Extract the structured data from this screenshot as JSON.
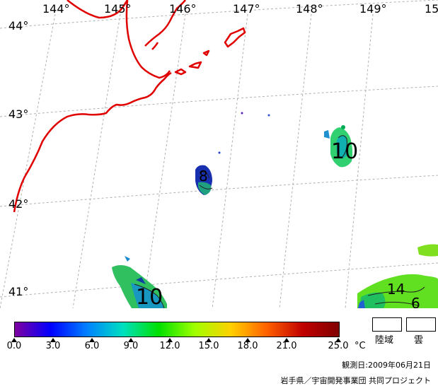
{
  "map": {
    "lon_labels": [
      "144°",
      "145°",
      "146°",
      "147°",
      "148°",
      "149°",
      "15"
    ],
    "lat_labels": [
      "44°",
      "43°",
      "42°",
      "41°"
    ],
    "contour_labels": [
      "10",
      "10",
      "14",
      "6",
      "8"
    ]
  },
  "colorbar": {
    "tick_labels": [
      "0.0",
      "3.0",
      "6.0",
      "9.0",
      "12.0",
      "15.0",
      "18.0",
      "21.0",
      "25.0"
    ],
    "unit": "°C",
    "colors": [
      "#7f00a0",
      "#0000ff",
      "#0080ff",
      "#00e0c0",
      "#00e000",
      "#a0ff00",
      "#ffd000",
      "#ff6000",
      "#c00000",
      "#800000"
    ]
  },
  "legend": {
    "land": "陸域",
    "cloud": "雲"
  },
  "footer": {
    "observation_date": "観測日:2009年06月21日",
    "credit": "岩手県／宇宙開発事業団 共同プロジェクト"
  }
}
